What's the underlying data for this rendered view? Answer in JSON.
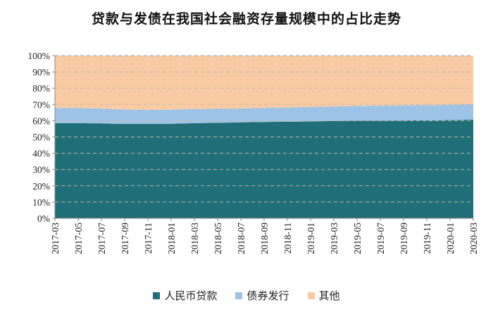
{
  "chart_data": {
    "type": "area",
    "stacked": true,
    "title": "贷款与发债在我国社会融资存量规模中的占比走势",
    "x": [
      "2017-03",
      "2017-04",
      "2017-05",
      "2017-06",
      "2017-07",
      "2017-08",
      "2017-09",
      "2017-10",
      "2017-11",
      "2017-12",
      "2018-01",
      "2018-02",
      "2018-03",
      "2018-04",
      "2018-05",
      "2018-06",
      "2018-07",
      "2018-08",
      "2018-09",
      "2018-10",
      "2018-11",
      "2018-12",
      "2019-01",
      "2019-02",
      "2019-03",
      "2019-04",
      "2019-05",
      "2019-06",
      "2019-07",
      "2019-08",
      "2019-09",
      "2019-10",
      "2019-11",
      "2019-12",
      "2020-01",
      "2020-02",
      "2020-03"
    ],
    "x_tick_labels": [
      "2017-03",
      "2017-05",
      "2017-07",
      "2017-09",
      "2017-11",
      "2018-01",
      "2018-03",
      "2018-05",
      "2018-07",
      "2018-09",
      "2018-11",
      "2019-01",
      "2019-03",
      "2019-05",
      "2019-07",
      "2019-09",
      "2019-11",
      "2020-01",
      "2020-03"
    ],
    "series": [
      {
        "name": "人民币贷款",
        "color": "#1f6e78",
        "values": [
          58.5,
          58.5,
          58.5,
          58.4,
          58.4,
          58.1,
          58.0,
          58.0,
          58.0,
          58.0,
          58.1,
          58.3,
          58.5,
          58.6,
          58.7,
          58.8,
          59.0,
          59.1,
          59.2,
          59.3,
          59.3,
          59.4,
          59.6,
          59.7,
          59.8,
          59.9,
          60.0,
          60.0,
          60.0,
          60.1,
          60.1,
          60.2,
          60.2,
          60.3,
          60.4,
          60.5,
          60.7
        ]
      },
      {
        "name": "债券发行",
        "color": "#9dc3e6",
        "values": [
          9.3,
          9.3,
          9.3,
          9.2,
          9.1,
          9.0,
          8.9,
          8.8,
          8.7,
          8.6,
          8.7,
          8.7,
          8.7,
          8.6,
          8.6,
          8.5,
          8.5,
          8.6,
          8.6,
          8.7,
          8.8,
          8.9,
          8.9,
          8.9,
          9.0,
          9.0,
          9.1,
          9.2,
          9.2,
          9.2,
          9.3,
          9.3,
          9.3,
          9.3,
          9.4,
          9.4,
          9.5
        ]
      },
      {
        "name": "其他",
        "color": "#f8cba5",
        "values": [
          32.2,
          32.2,
          32.2,
          32.4,
          32.5,
          32.9,
          33.1,
          33.2,
          33.3,
          33.4,
          33.2,
          33.0,
          32.8,
          32.8,
          32.7,
          32.7,
          32.5,
          32.3,
          32.2,
          32.0,
          31.9,
          31.7,
          31.5,
          31.4,
          31.2,
          31.1,
          30.9,
          30.8,
          30.8,
          30.7,
          30.6,
          30.5,
          30.5,
          30.4,
          30.2,
          30.1,
          29.8
        ]
      }
    ],
    "y_tick_labels": [
      "0%",
      "10%",
      "20%",
      "30%",
      "40%",
      "50%",
      "60%",
      "70%",
      "80%",
      "90%",
      "100%"
    ],
    "ylim": [
      0,
      100
    ],
    "grid": "horizontal dashed",
    "legend_position": "bottom"
  }
}
